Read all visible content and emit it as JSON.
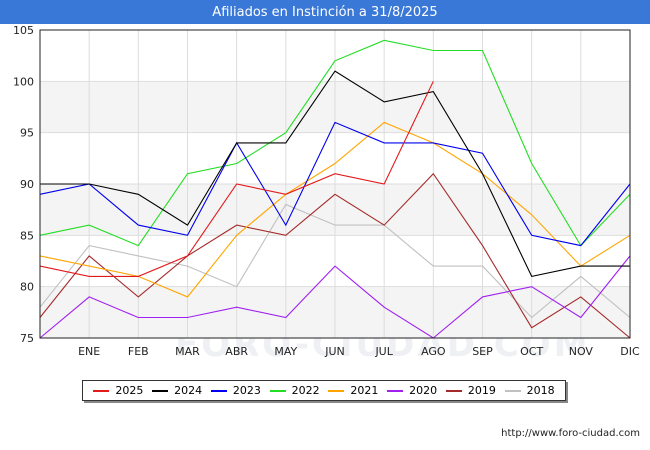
{
  "header": {
    "title": "Afiliados en Instinción a 31/8/2025"
  },
  "footer": {
    "url": "http://www.foro-ciudad.com"
  },
  "background_text": "FORO-CIUDAD.COM",
  "chart_data": {
    "type": "line",
    "title": "Afiliados en Instinción a 31/8/2025",
    "categories": [
      "",
      "ENE",
      "FEB",
      "MAR",
      "ABR",
      "MAY",
      "JUN",
      "JUL",
      "AGO",
      "SEP",
      "OCT",
      "NOV",
      "DIC"
    ],
    "ylim": [
      75,
      105
    ],
    "yticks": [
      75,
      80,
      85,
      90,
      95,
      100,
      105
    ],
    "grid": "horizontal bands",
    "legend_position": "bottom",
    "series": [
      {
        "name": "2025",
        "color": "#e31a1c",
        "values": [
          82,
          81,
          81,
          83,
          90,
          89,
          91,
          90,
          100,
          null,
          null,
          null,
          null
        ]
      },
      {
        "name": "2024",
        "color": "#000000",
        "values": [
          90,
          90,
          89,
          86,
          94,
          94,
          101,
          98,
          99,
          91,
          81,
          82,
          82
        ]
      },
      {
        "name": "2023",
        "color": "#0000ee",
        "values": [
          89,
          90,
          86,
          85,
          94,
          86,
          96,
          94,
          94,
          93,
          85,
          84,
          90
        ]
      },
      {
        "name": "2022",
        "color": "#22dd22",
        "values": [
          85,
          86,
          84,
          91,
          92,
          95,
          102,
          104,
          103,
          103,
          92,
          84,
          89
        ]
      },
      {
        "name": "2021",
        "color": "#ffa500",
        "values": [
          83,
          82,
          81,
          79,
          85,
          89,
          92,
          96,
          94,
          91,
          87,
          82,
          85
        ]
      },
      {
        "name": "2020",
        "color": "#a020f0",
        "values": [
          75,
          79,
          77,
          77,
          78,
          77,
          82,
          78,
          75,
          79,
          80,
          77,
          83
        ]
      },
      {
        "name": "2019",
        "color": "#a52a2a",
        "values": [
          77,
          83,
          79,
          83,
          86,
          85,
          89,
          86,
          91,
          84,
          76,
          79,
          75
        ]
      },
      {
        "name": "2018",
        "color": "#c0c0c0",
        "values": [
          78,
          84,
          83,
          82,
          80,
          88,
          86,
          86,
          82,
          82,
          77,
          81,
          77
        ]
      }
    ]
  }
}
